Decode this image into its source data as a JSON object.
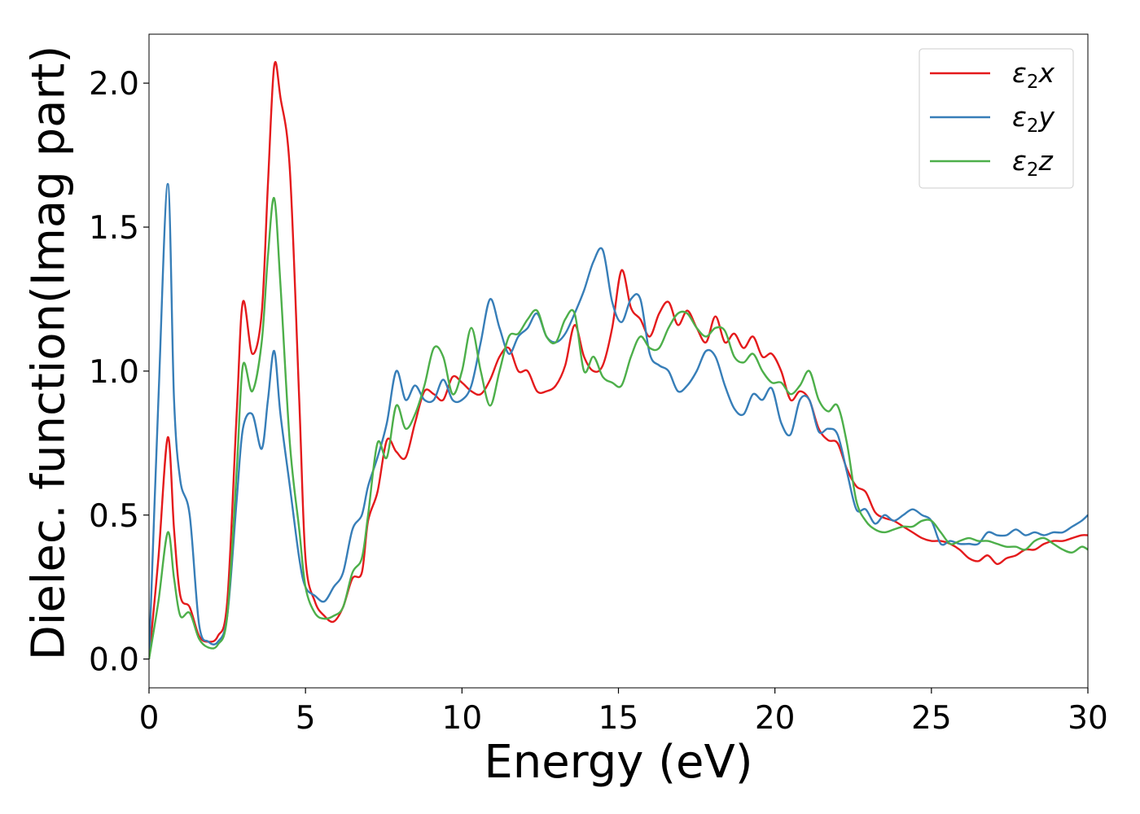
{
  "chart_data": {
    "type": "line",
    "xlabel": "Energy (eV)",
    "ylabel": "Dielec. function(Imag part)",
    "xlim": [
      0,
      30
    ],
    "ylim": [
      -0.1,
      2.17
    ],
    "xticks": [
      0,
      5,
      10,
      15,
      20,
      25,
      30
    ],
    "xtick_labels": [
      "0",
      "5",
      "10",
      "15",
      "20",
      "25",
      "30"
    ],
    "yticks": [
      0.0,
      0.5,
      1.0,
      1.5,
      2.0
    ],
    "ytick_labels": [
      "0.0",
      "0.5",
      "1.0",
      "1.5",
      "2.0"
    ],
    "grid": false,
    "legend_position": "top-right",
    "series": [
      {
        "name": "ε₂x",
        "legend_main": "ε",
        "legend_sub": "2",
        "legend_tail": "x",
        "color": "#e41a1c",
        "x": [
          0,
          0.3,
          0.6,
          0.8,
          1.0,
          1.3,
          1.6,
          1.9,
          2.2,
          2.5,
          2.8,
          3.0,
          3.3,
          3.6,
          3.8,
          4.0,
          4.2,
          4.5,
          4.8,
          5.0,
          5.3,
          5.6,
          5.9,
          6.2,
          6.5,
          6.8,
          7.0,
          7.3,
          7.6,
          7.9,
          8.2,
          8.5,
          8.8,
          9.1,
          9.4,
          9.7,
          10.0,
          10.3,
          10.6,
          10.9,
          11.2,
          11.5,
          11.8,
          12.1,
          12.4,
          12.7,
          13.0,
          13.3,
          13.6,
          13.9,
          14.2,
          14.5,
          14.8,
          15.1,
          15.4,
          15.7,
          16.0,
          16.3,
          16.6,
          16.9,
          17.2,
          17.5,
          17.8,
          18.1,
          18.4,
          18.7,
          19.0,
          19.3,
          19.6,
          19.9,
          20.2,
          20.5,
          20.8,
          21.1,
          21.4,
          21.7,
          22.0,
          22.3,
          22.6,
          22.9,
          23.2,
          23.5,
          23.8,
          24.1,
          24.4,
          24.7,
          25.0,
          25.3,
          25.6,
          25.9,
          26.2,
          26.5,
          26.8,
          27.1,
          27.4,
          27.7,
          28.0,
          28.3,
          28.6,
          28.9,
          29.2,
          29.5,
          29.8,
          30.0
        ],
        "values": [
          0.0,
          0.35,
          0.77,
          0.45,
          0.22,
          0.18,
          0.08,
          0.06,
          0.08,
          0.2,
          0.85,
          1.24,
          1.06,
          1.2,
          1.65,
          2.06,
          1.95,
          1.7,
          0.9,
          0.35,
          0.2,
          0.15,
          0.13,
          0.18,
          0.28,
          0.3,
          0.48,
          0.58,
          0.76,
          0.72,
          0.7,
          0.82,
          0.93,
          0.92,
          0.9,
          0.98,
          0.96,
          0.93,
          0.92,
          0.97,
          1.05,
          1.08,
          1.0,
          1.0,
          0.93,
          0.93,
          0.95,
          1.02,
          1.16,
          1.05,
          1.0,
          1.02,
          1.15,
          1.35,
          1.22,
          1.18,
          1.12,
          1.2,
          1.24,
          1.16,
          1.21,
          1.15,
          1.1,
          1.19,
          1.1,
          1.13,
          1.08,
          1.12,
          1.05,
          1.06,
          1.0,
          0.9,
          0.93,
          0.9,
          0.8,
          0.76,
          0.75,
          0.66,
          0.6,
          0.58,
          0.51,
          0.49,
          0.48,
          0.46,
          0.44,
          0.42,
          0.41,
          0.41,
          0.4,
          0.38,
          0.35,
          0.34,
          0.36,
          0.33,
          0.35,
          0.36,
          0.38,
          0.38,
          0.4,
          0.41,
          0.41,
          0.42,
          0.43,
          0.43
        ]
      },
      {
        "name": "ε₂y",
        "legend_main": "ε",
        "legend_sub": "2",
        "legend_tail": "y",
        "color": "#377eb8",
        "x": [
          0,
          0.3,
          0.6,
          0.8,
          1.0,
          1.3,
          1.6,
          1.9,
          2.2,
          2.5,
          2.8,
          3.0,
          3.3,
          3.6,
          3.8,
          4.0,
          4.2,
          4.5,
          4.8,
          5.0,
          5.3,
          5.6,
          5.9,
          6.2,
          6.5,
          6.8,
          7.0,
          7.3,
          7.6,
          7.9,
          8.2,
          8.5,
          8.8,
          9.1,
          9.4,
          9.7,
          10.0,
          10.3,
          10.6,
          10.9,
          11.2,
          11.5,
          11.8,
          12.1,
          12.4,
          12.7,
          13.0,
          13.3,
          13.6,
          13.9,
          14.2,
          14.5,
          14.8,
          15.1,
          15.4,
          15.7,
          16.0,
          16.3,
          16.6,
          16.9,
          17.2,
          17.5,
          17.8,
          18.1,
          18.4,
          18.7,
          19.0,
          19.3,
          19.6,
          19.9,
          20.2,
          20.5,
          20.8,
          21.1,
          21.4,
          21.7,
          22.0,
          22.3,
          22.6,
          22.9,
          23.2,
          23.5,
          23.8,
          24.1,
          24.4,
          24.7,
          25.0,
          25.3,
          25.6,
          25.9,
          26.2,
          26.5,
          26.8,
          27.1,
          27.4,
          27.7,
          28.0,
          28.3,
          28.6,
          28.9,
          29.2,
          29.5,
          29.8,
          30.0
        ],
        "values": [
          0.0,
          0.9,
          1.65,
          0.9,
          0.62,
          0.5,
          0.12,
          0.06,
          0.06,
          0.15,
          0.55,
          0.8,
          0.85,
          0.73,
          0.9,
          1.07,
          0.85,
          0.6,
          0.35,
          0.25,
          0.22,
          0.2,
          0.25,
          0.3,
          0.45,
          0.5,
          0.6,
          0.7,
          0.82,
          1.0,
          0.9,
          0.95,
          0.9,
          0.9,
          0.97,
          0.9,
          0.9,
          0.95,
          1.1,
          1.25,
          1.15,
          1.06,
          1.12,
          1.15,
          1.2,
          1.12,
          1.1,
          1.13,
          1.2,
          1.28,
          1.38,
          1.42,
          1.24,
          1.17,
          1.25,
          1.25,
          1.06,
          1.02,
          1.0,
          0.93,
          0.95,
          1.0,
          1.07,
          1.05,
          0.95,
          0.87,
          0.85,
          0.92,
          0.9,
          0.94,
          0.82,
          0.78,
          0.9,
          0.9,
          0.79,
          0.8,
          0.78,
          0.65,
          0.52,
          0.52,
          0.47,
          0.5,
          0.48,
          0.5,
          0.52,
          0.5,
          0.48,
          0.4,
          0.41,
          0.4,
          0.4,
          0.4,
          0.44,
          0.43,
          0.43,
          0.45,
          0.43,
          0.44,
          0.43,
          0.44,
          0.44,
          0.46,
          0.48,
          0.5
        ]
      },
      {
        "name": "ε₂z",
        "legend_main": "ε",
        "legend_sub": "2",
        "legend_tail": "z",
        "color": "#4daf4a",
        "x": [
          0,
          0.3,
          0.6,
          0.8,
          1.0,
          1.3,
          1.6,
          1.9,
          2.2,
          2.5,
          2.8,
          3.0,
          3.3,
          3.6,
          3.8,
          4.0,
          4.2,
          4.5,
          4.8,
          5.0,
          5.3,
          5.6,
          5.9,
          6.2,
          6.5,
          6.8,
          7.0,
          7.3,
          7.6,
          7.9,
          8.2,
          8.5,
          8.8,
          9.1,
          9.4,
          9.7,
          10.0,
          10.3,
          10.6,
          10.9,
          11.2,
          11.5,
          11.8,
          12.1,
          12.4,
          12.7,
          13.0,
          13.3,
          13.6,
          13.9,
          14.2,
          14.5,
          14.8,
          15.1,
          15.4,
          15.7,
          16.0,
          16.3,
          16.6,
          16.9,
          17.2,
          17.5,
          17.8,
          18.1,
          18.4,
          18.7,
          19.0,
          19.3,
          19.6,
          19.9,
          20.2,
          20.5,
          20.8,
          21.1,
          21.4,
          21.7,
          22.0,
          22.3,
          22.6,
          22.9,
          23.2,
          23.5,
          23.8,
          24.1,
          24.4,
          24.7,
          25.0,
          25.3,
          25.6,
          25.9,
          26.2,
          26.5,
          26.8,
          27.1,
          27.4,
          27.7,
          28.0,
          28.3,
          28.6,
          28.9,
          29.2,
          29.5,
          29.8,
          30.0
        ],
        "values": [
          0.0,
          0.2,
          0.44,
          0.28,
          0.15,
          0.16,
          0.07,
          0.04,
          0.05,
          0.15,
          0.65,
          1.02,
          0.93,
          1.1,
          1.4,
          1.6,
          1.3,
          0.75,
          0.45,
          0.25,
          0.16,
          0.14,
          0.15,
          0.18,
          0.3,
          0.35,
          0.5,
          0.75,
          0.7,
          0.88,
          0.8,
          0.85,
          0.95,
          1.08,
          1.05,
          0.92,
          1.0,
          1.15,
          1.0,
          0.88,
          1.0,
          1.12,
          1.13,
          1.18,
          1.21,
          1.12,
          1.1,
          1.18,
          1.2,
          1.0,
          1.05,
          0.98,
          0.96,
          0.95,
          1.05,
          1.12,
          1.08,
          1.08,
          1.15,
          1.2,
          1.2,
          1.15,
          1.12,
          1.15,
          1.14,
          1.05,
          1.03,
          1.06,
          1.0,
          0.96,
          0.96,
          0.92,
          0.95,
          1.0,
          0.9,
          0.86,
          0.88,
          0.75,
          0.55,
          0.48,
          0.45,
          0.44,
          0.45,
          0.46,
          0.46,
          0.48,
          0.48,
          0.44,
          0.4,
          0.41,
          0.42,
          0.41,
          0.41,
          0.4,
          0.39,
          0.39,
          0.38,
          0.41,
          0.42,
          0.4,
          0.38,
          0.37,
          0.39,
          0.38
        ]
      }
    ]
  }
}
